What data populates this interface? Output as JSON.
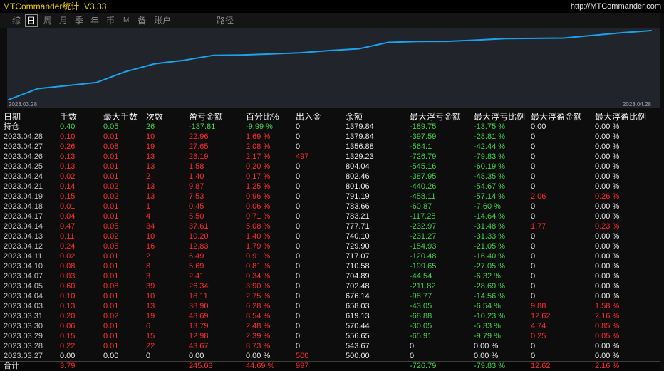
{
  "app": {
    "title": "MTCommander统计 ,V3.33",
    "website": "http://MTCommander.com"
  },
  "tabs": [
    {
      "label": "综",
      "active": false
    },
    {
      "label": "日",
      "active": true
    },
    {
      "label": "周",
      "active": false
    },
    {
      "label": "月",
      "active": false
    },
    {
      "label": "季",
      "active": false
    },
    {
      "label": "年",
      "active": false
    },
    {
      "label": "币",
      "active": false
    },
    {
      "label": "M",
      "active": false
    },
    {
      "label": "备",
      "active": false
    },
    {
      "label": "账户",
      "active": false
    },
    {
      "label": "路径",
      "active": false
    }
  ],
  "colors": {
    "title": "#f0d000",
    "red": "#ff2b2b",
    "green": "#3fd24a",
    "white": "#e8e8e8",
    "gray": "#c4c4c4",
    "curve": "#1aa3ec"
  },
  "chart_data": {
    "type": "line",
    "x_labels": [
      "2023.03.28",
      "2023.04.28"
    ],
    "x": [
      "2023.03.27",
      "2023.03.28",
      "2023.03.29",
      "2023.03.30",
      "2023.03.31",
      "2023.04.03",
      "2023.04.04",
      "2023.04.05",
      "2023.04.07",
      "2023.04.10",
      "2023.04.11",
      "2023.04.12",
      "2023.04.13",
      "2023.04.14",
      "2023.04.17",
      "2023.04.18",
      "2023.04.19",
      "2023.04.21",
      "2023.04.24",
      "2023.04.25",
      "2023.04.26",
      "2023.04.27",
      "2023.04.28"
    ],
    "series": [
      {
        "values": [
          0.0,
          8.73,
          11.12,
          13.6,
          22.14,
          28.42,
          31.17,
          35.07,
          35.41,
          36.22,
          37.13,
          38.92,
          40.32,
          45.4,
          46.11,
          46.17,
          47.13,
          48.38,
          48.55,
          48.75,
          50.92,
          53.0,
          54.69
        ]
      }
    ],
    "grid": false,
    "legend": "none"
  },
  "table": {
    "headers": [
      "日期",
      "手数",
      "最大手数",
      "次数",
      "盈亏金额",
      "百分比%",
      "出入金",
      "余额",
      "最大浮亏金额",
      "最大浮亏比例",
      "最大浮盈金额",
      "最大浮盈比例"
    ],
    "open_positions": {
      "cells": [
        "持仓",
        "0.40",
        "0.05",
        "26",
        "-137.81",
        "-9.99 %",
        "0",
        "1379.84",
        "-189.75",
        "-13.75 %",
        "0.00",
        "0.00 %"
      ],
      "colors": [
        "white",
        "green",
        "green",
        "green",
        "green",
        "green",
        "white",
        "white",
        "green",
        "green",
        "white",
        "white"
      ]
    },
    "rows": [
      {
        "cells": [
          "2023.04.28",
          "0.10",
          "0.01",
          "10",
          "22.96",
          "1.69 %",
          "0",
          "1379.84",
          "-397.59",
          "-28.81 %",
          "0",
          "0.00 %"
        ],
        "colors": [
          "gray",
          "red",
          "red",
          "red",
          "red",
          "red",
          "white",
          "white",
          "green",
          "green",
          "white",
          "white"
        ]
      },
      {
        "cells": [
          "2023.04.27",
          "0.26",
          "0.08",
          "19",
          "27.65",
          "2.08 %",
          "0",
          "1356.88",
          "-564.1",
          "-42.44 %",
          "0",
          "0.00 %"
        ],
        "colors": [
          "gray",
          "red",
          "red",
          "red",
          "red",
          "red",
          "white",
          "white",
          "green",
          "green",
          "white",
          "white"
        ]
      },
      {
        "cells": [
          "2023.04.26",
          "0.13",
          "0.01",
          "13",
          "28.19",
          "2.17 %",
          "497",
          "1329.23",
          "-726.79",
          "-79.83 %",
          "0",
          "0.00 %"
        ],
        "colors": [
          "gray",
          "red",
          "red",
          "red",
          "red",
          "red",
          "red",
          "white",
          "green",
          "green",
          "white",
          "white"
        ]
      },
      {
        "cells": [
          "2023.04.25",
          "0.13",
          "0.01",
          "13",
          "1.58",
          "0.20 %",
          "0",
          "804.04",
          "-545.16",
          "-60.19 %",
          "0",
          "0.00 %"
        ],
        "colors": [
          "gray",
          "red",
          "red",
          "red",
          "red",
          "red",
          "white",
          "white",
          "green",
          "green",
          "white",
          "white"
        ]
      },
      {
        "cells": [
          "2023.04.24",
          "0.02",
          "0.01",
          "2",
          "1.40",
          "0.17 %",
          "0",
          "802.46",
          "-387.95",
          "-48.35 %",
          "0",
          "0.00 %"
        ],
        "colors": [
          "gray",
          "red",
          "red",
          "red",
          "red",
          "red",
          "white",
          "white",
          "green",
          "green",
          "white",
          "white"
        ]
      },
      {
        "cells": [
          "2023.04.21",
          "0.14",
          "0.02",
          "13",
          "9.87",
          "1.25 %",
          "0",
          "801.06",
          "-440.26",
          "-54.67 %",
          "0",
          "0.00 %"
        ],
        "colors": [
          "gray",
          "red",
          "red",
          "red",
          "red",
          "red",
          "white",
          "white",
          "green",
          "green",
          "white",
          "white"
        ]
      },
      {
        "cells": [
          "2023.04.19",
          "0.15",
          "0.02",
          "13",
          "7.53",
          "0.96 %",
          "0",
          "791.19",
          "-458.11",
          "-57.14 %",
          "2.06",
          "0.26 %"
        ],
        "colors": [
          "gray",
          "red",
          "red",
          "red",
          "red",
          "red",
          "white",
          "white",
          "green",
          "green",
          "red",
          "red"
        ]
      },
      {
        "cells": [
          "2023.04.18",
          "0.01",
          "0.01",
          "1",
          "0.45",
          "0.06 %",
          "0",
          "783.66",
          "-60.87",
          "-7.60 %",
          "0",
          "0.00 %"
        ],
        "colors": [
          "gray",
          "red",
          "red",
          "red",
          "red",
          "red",
          "white",
          "white",
          "green",
          "green",
          "white",
          "white"
        ]
      },
      {
        "cells": [
          "2023.04.17",
          "0.04",
          "0.01",
          "4",
          "5.50",
          "0.71 %",
          "0",
          "783.21",
          "-117.25",
          "-14.64 %",
          "0",
          "0.00 %"
        ],
        "colors": [
          "gray",
          "red",
          "red",
          "red",
          "red",
          "red",
          "white",
          "white",
          "green",
          "green",
          "white",
          "white"
        ]
      },
      {
        "cells": [
          "2023.04.14",
          "0.47",
          "0.05",
          "34",
          "37.61",
          "5.08 %",
          "0",
          "777.71",
          "-232.97",
          "-31.48 %",
          "1.77",
          "0.23 %"
        ],
        "colors": [
          "gray",
          "red",
          "red",
          "red",
          "red",
          "red",
          "white",
          "white",
          "green",
          "green",
          "red",
          "red"
        ]
      },
      {
        "cells": [
          "2023.04.13",
          "0.11",
          "0.02",
          "10",
          "10.20",
          "1.40 %",
          "0",
          "740.10",
          "-231.27",
          "-31.33 %",
          "0",
          "0.00 %"
        ],
        "colors": [
          "gray",
          "red",
          "red",
          "red",
          "red",
          "red",
          "white",
          "white",
          "green",
          "green",
          "white",
          "white"
        ]
      },
      {
        "cells": [
          "2023.04.12",
          "0.24",
          "0.05",
          "16",
          "12.83",
          "1.79 %",
          "0",
          "729.90",
          "-154.93",
          "-21.05 %",
          "0",
          "0.00 %"
        ],
        "colors": [
          "gray",
          "red",
          "red",
          "red",
          "red",
          "red",
          "white",
          "white",
          "green",
          "green",
          "white",
          "white"
        ]
      },
      {
        "cells": [
          "2023.04.11",
          "0.02",
          "0.01",
          "2",
          "6.49",
          "0.91 %",
          "0",
          "717.07",
          "-120.48",
          "-16.40 %",
          "0",
          "0.00 %"
        ],
        "colors": [
          "gray",
          "red",
          "red",
          "red",
          "red",
          "red",
          "white",
          "white",
          "green",
          "green",
          "white",
          "white"
        ]
      },
      {
        "cells": [
          "2023.04.10",
          "0.08",
          "0.01",
          "8",
          "5.69",
          "0.81 %",
          "0",
          "710.58",
          "-199.65",
          "-27.05 %",
          "0",
          "0.00 %"
        ],
        "colors": [
          "gray",
          "red",
          "red",
          "red",
          "red",
          "red",
          "white",
          "white",
          "green",
          "green",
          "white",
          "white"
        ]
      },
      {
        "cells": [
          "2023.04.07",
          "0.03",
          "0.01",
          "3",
          "2.41",
          "0.34 %",
          "0",
          "704.89",
          "-44.54",
          "-6.32 %",
          "0",
          "0.00 %"
        ],
        "colors": [
          "gray",
          "red",
          "red",
          "red",
          "red",
          "red",
          "white",
          "white",
          "green",
          "green",
          "white",
          "white"
        ]
      },
      {
        "cells": [
          "2023.04.05",
          "0.60",
          "0.08",
          "39",
          "26.34",
          "3.90 %",
          "0",
          "702.48",
          "-211.82",
          "-28.69 %",
          "0",
          "0.00 %"
        ],
        "colors": [
          "gray",
          "red",
          "red",
          "red",
          "red",
          "red",
          "white",
          "white",
          "green",
          "green",
          "white",
          "white"
        ]
      },
      {
        "cells": [
          "2023.04.04",
          "0.10",
          "0.01",
          "10",
          "18.11",
          "2.75 %",
          "0",
          "676.14",
          "-98.77",
          "-14.56 %",
          "0",
          "0.00 %"
        ],
        "colors": [
          "gray",
          "red",
          "red",
          "red",
          "red",
          "red",
          "white",
          "white",
          "green",
          "green",
          "white",
          "white"
        ]
      },
      {
        "cells": [
          "2023.04.03",
          "0.13",
          "0.01",
          "13",
          "38.90",
          "6.28 %",
          "0",
          "658.03",
          "-43.05",
          "-6.54 %",
          "9.88",
          "1.58 %"
        ],
        "colors": [
          "gray",
          "red",
          "red",
          "red",
          "red",
          "red",
          "white",
          "white",
          "green",
          "green",
          "red",
          "red"
        ]
      },
      {
        "cells": [
          "2023.03.31",
          "0.20",
          "0.02",
          "19",
          "48.69",
          "8.54 %",
          "0",
          "619.13",
          "-68.88",
          "-10.23 %",
          "12.62",
          "2.16 %"
        ],
        "colors": [
          "gray",
          "red",
          "red",
          "red",
          "red",
          "red",
          "white",
          "white",
          "green",
          "green",
          "red",
          "red"
        ]
      },
      {
        "cells": [
          "2023.03.30",
          "0.06",
          "0.01",
          "6",
          "13.79",
          "2.48 %",
          "0",
          "570.44",
          "-30.05",
          "-5.33 %",
          "4.74",
          "0.85 %"
        ],
        "colors": [
          "gray",
          "red",
          "red",
          "red",
          "red",
          "red",
          "white",
          "white",
          "green",
          "green",
          "red",
          "red"
        ]
      },
      {
        "cells": [
          "2023.03.29",
          "0.15",
          "0.01",
          "15",
          "12.98",
          "2.39 %",
          "0",
          "556.65",
          "-65.91",
          "-9.79 %",
          "0.25",
          "0.05 %"
        ],
        "colors": [
          "gray",
          "red",
          "red",
          "red",
          "red",
          "red",
          "white",
          "white",
          "green",
          "green",
          "red",
          "red"
        ]
      },
      {
        "cells": [
          "2023.03.28",
          "0.22",
          "0.01",
          "22",
          "43.67",
          "8.73 %",
          "0",
          "543.67",
          "0",
          "0.00 %",
          "0",
          "0.00 %"
        ],
        "colors": [
          "gray",
          "red",
          "red",
          "red",
          "red",
          "red",
          "white",
          "white",
          "white",
          "white",
          "white",
          "white"
        ]
      },
      {
        "cells": [
          "2023.03.27",
          "0.00",
          "0.00",
          "0",
          "0.00",
          "0.00 %",
          "500",
          "500.00",
          "0",
          "0.00 %",
          "0",
          "0.00 %"
        ],
        "colors": [
          "gray",
          "white",
          "white",
          "white",
          "white",
          "white",
          "red",
          "white",
          "white",
          "white",
          "white",
          "white"
        ]
      }
    ],
    "total": {
      "cells": [
        "合计",
        "3.79",
        "",
        "",
        "245.03",
        "44.69 %",
        "997",
        "",
        "-726.79",
        "-79.83 %",
        "12.62",
        "2.16 %"
      ],
      "colors": [
        "white",
        "red",
        "white",
        "white",
        "red",
        "red",
        "red",
        "white",
        "green",
        "green",
        "red",
        "red"
      ]
    }
  }
}
